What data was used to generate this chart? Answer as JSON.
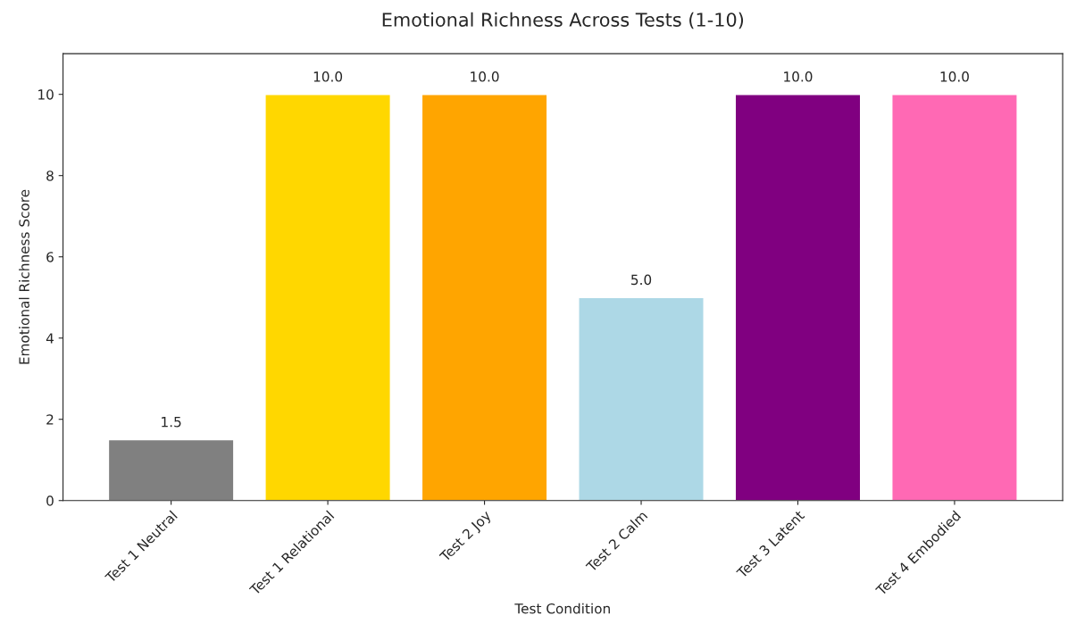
{
  "chart_data": {
    "type": "bar",
    "title": "Emotional Richness Across Tests (1-10)",
    "xlabel": "Test Condition",
    "ylabel": "Emotional Richness Score",
    "categories": [
      "Test 1 Neutral",
      "Test 1 Relational",
      "Test 2 Joy",
      "Test 2 Calm",
      "Test 3 Latent",
      "Test 4 Embodied"
    ],
    "values": [
      1.5,
      10,
      10,
      5,
      10,
      10
    ],
    "value_labels": [
      "1.5",
      "10.0",
      "10.0",
      "5.0",
      "10.0",
      "10.0"
    ],
    "colors": [
      "#808080",
      "#ffd700",
      "#ffa500",
      "#add8e6",
      "#800080",
      "#ff69b4"
    ],
    "ylim": [
      0,
      11
    ],
    "yticks": [
      0,
      2,
      4,
      6,
      8,
      10
    ],
    "grid": false
  }
}
